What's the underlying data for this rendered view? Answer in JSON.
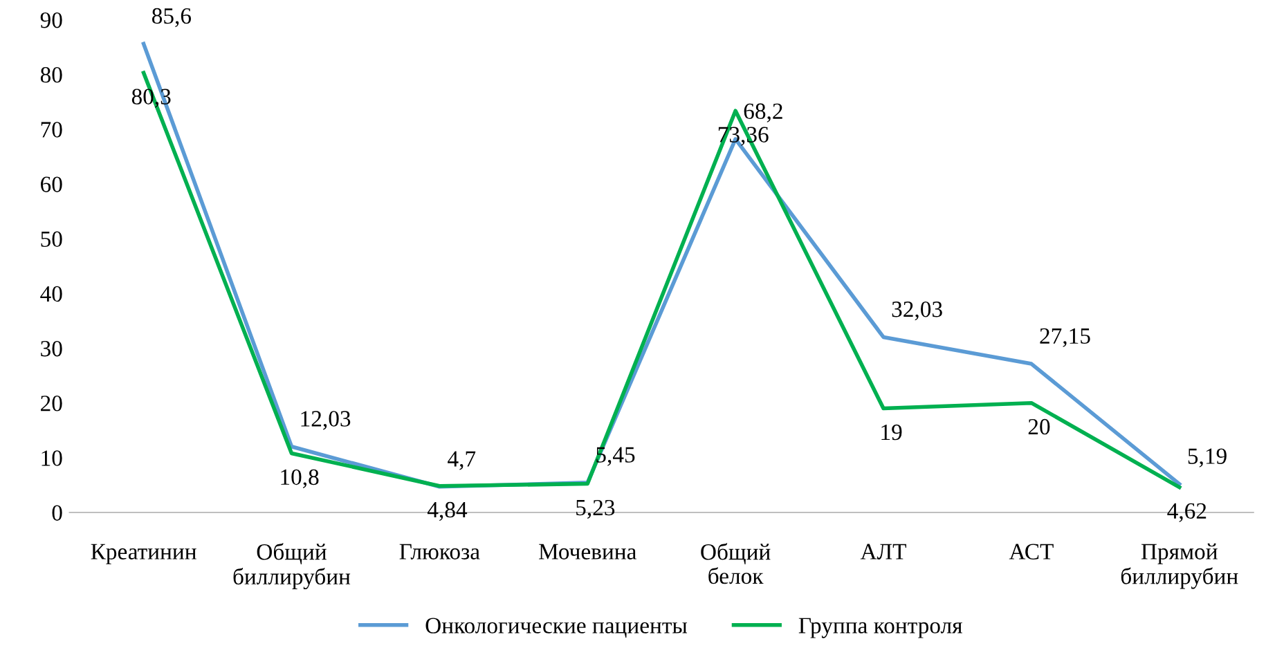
{
  "chart_data": {
    "type": "line",
    "categories": [
      "Креатинин",
      "Общий\nбиллирубин",
      "Глюкоза",
      "Мочевина",
      "Общий\nбелок",
      "АЛТ",
      "АСТ",
      "Прямой\nбиллирубин"
    ],
    "series": [
      {
        "name": "Онкологические пациенты",
        "color": "#5b9bd5",
        "values": [
          85.6,
          12.03,
          4.7,
          5.45,
          68.2,
          32.03,
          27.15,
          5.19
        ],
        "value_labels": [
          "85,6",
          "12,03",
          "4,7",
          "5,45",
          "68,2",
          "32,03",
          "27,15",
          "5,19"
        ]
      },
      {
        "name": "Группа контроля",
        "color": "#00b050",
        "values": [
          80.3,
          10.8,
          4.84,
          5.23,
          73.36,
          19,
          20,
          4.62
        ],
        "value_labels": [
          "80,3",
          "10,8",
          "4,84",
          "5,23",
          "73,36",
          "19",
          "20",
          "4,62"
        ]
      }
    ],
    "ylim": [
      0,
      90
    ],
    "yticks": [
      0,
      10,
      20,
      30,
      40,
      50,
      60,
      70,
      80,
      90
    ],
    "grid": false,
    "legend": "bottom",
    "marker": "none",
    "line_style": "solid"
  }
}
